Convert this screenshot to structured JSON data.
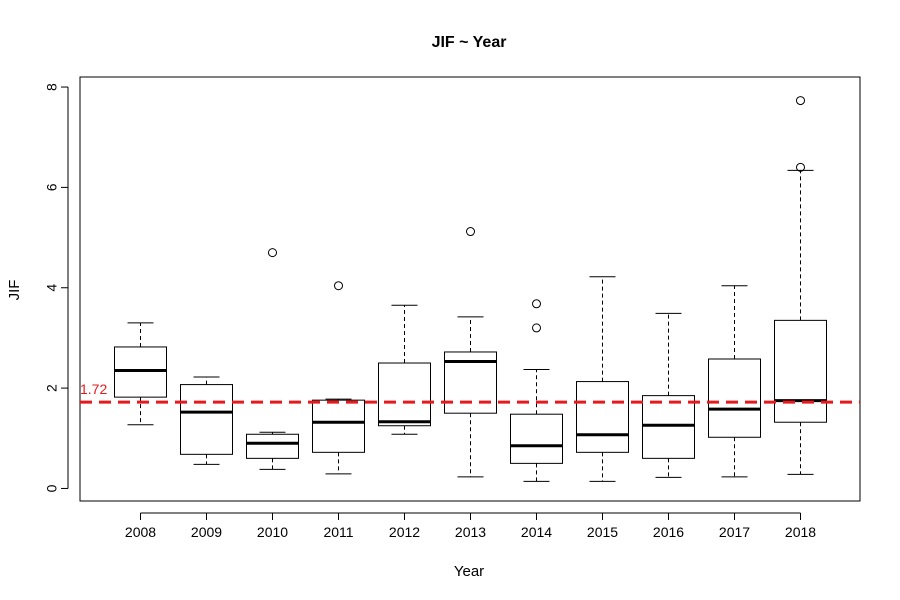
{
  "chart_data": {
    "type": "boxplot",
    "title": "JIF ~ Year",
    "xlabel": "Year",
    "ylabel": "JIF",
    "ylim": [
      -0.25,
      8.2
    ],
    "yticks": [
      0,
      2,
      4,
      6,
      8
    ],
    "grid": false,
    "categories": [
      "2008",
      "2009",
      "2010",
      "2011",
      "2012",
      "2013",
      "2014",
      "2015",
      "2016",
      "2017",
      "2018"
    ],
    "boxes": [
      {
        "min": 1.27,
        "q1": 1.82,
        "median": 2.35,
        "q3": 2.82,
        "max": 3.3,
        "outliers": []
      },
      {
        "min": 0.48,
        "q1": 0.68,
        "median": 1.52,
        "q3": 2.07,
        "max": 2.22,
        "outliers": []
      },
      {
        "min": 0.38,
        "q1": 0.6,
        "median": 0.9,
        "q3": 1.08,
        "max": 1.12,
        "outliers": [
          4.7
        ]
      },
      {
        "min": 0.29,
        "q1": 0.72,
        "median": 1.32,
        "q3": 1.76,
        "max": 1.78,
        "outliers": [
          4.04
        ]
      },
      {
        "min": 1.08,
        "q1": 1.25,
        "median": 1.33,
        "q3": 2.5,
        "max": 3.65,
        "outliers": []
      },
      {
        "min": 0.23,
        "q1": 1.5,
        "median": 2.53,
        "q3": 2.72,
        "max": 3.42,
        "outliers": [
          5.12
        ]
      },
      {
        "min": 0.14,
        "q1": 0.5,
        "median": 0.85,
        "q3": 1.48,
        "max": 2.37,
        "outliers": [
          3.2,
          3.68
        ]
      },
      {
        "min": 0.14,
        "q1": 0.72,
        "median": 1.07,
        "q3": 2.13,
        "max": 4.22,
        "outliers": []
      },
      {
        "min": 0.22,
        "q1": 0.6,
        "median": 1.26,
        "q3": 1.85,
        "max": 3.49,
        "outliers": []
      },
      {
        "min": 0.23,
        "q1": 1.02,
        "median": 1.58,
        "q3": 2.58,
        "max": 4.04,
        "outliers": []
      },
      {
        "min": 0.28,
        "q1": 1.32,
        "median": 1.75,
        "q3": 3.35,
        "max": 6.34,
        "outliers": [
          6.4,
          7.73
        ]
      }
    ],
    "reference_line": {
      "value": 1.72,
      "label": "1.72",
      "color": "#e8191c",
      "style": "dashed"
    },
    "colors": {
      "box_fill": "#ffffff",
      "stroke": "#000000",
      "reference": "#e8191c"
    }
  }
}
